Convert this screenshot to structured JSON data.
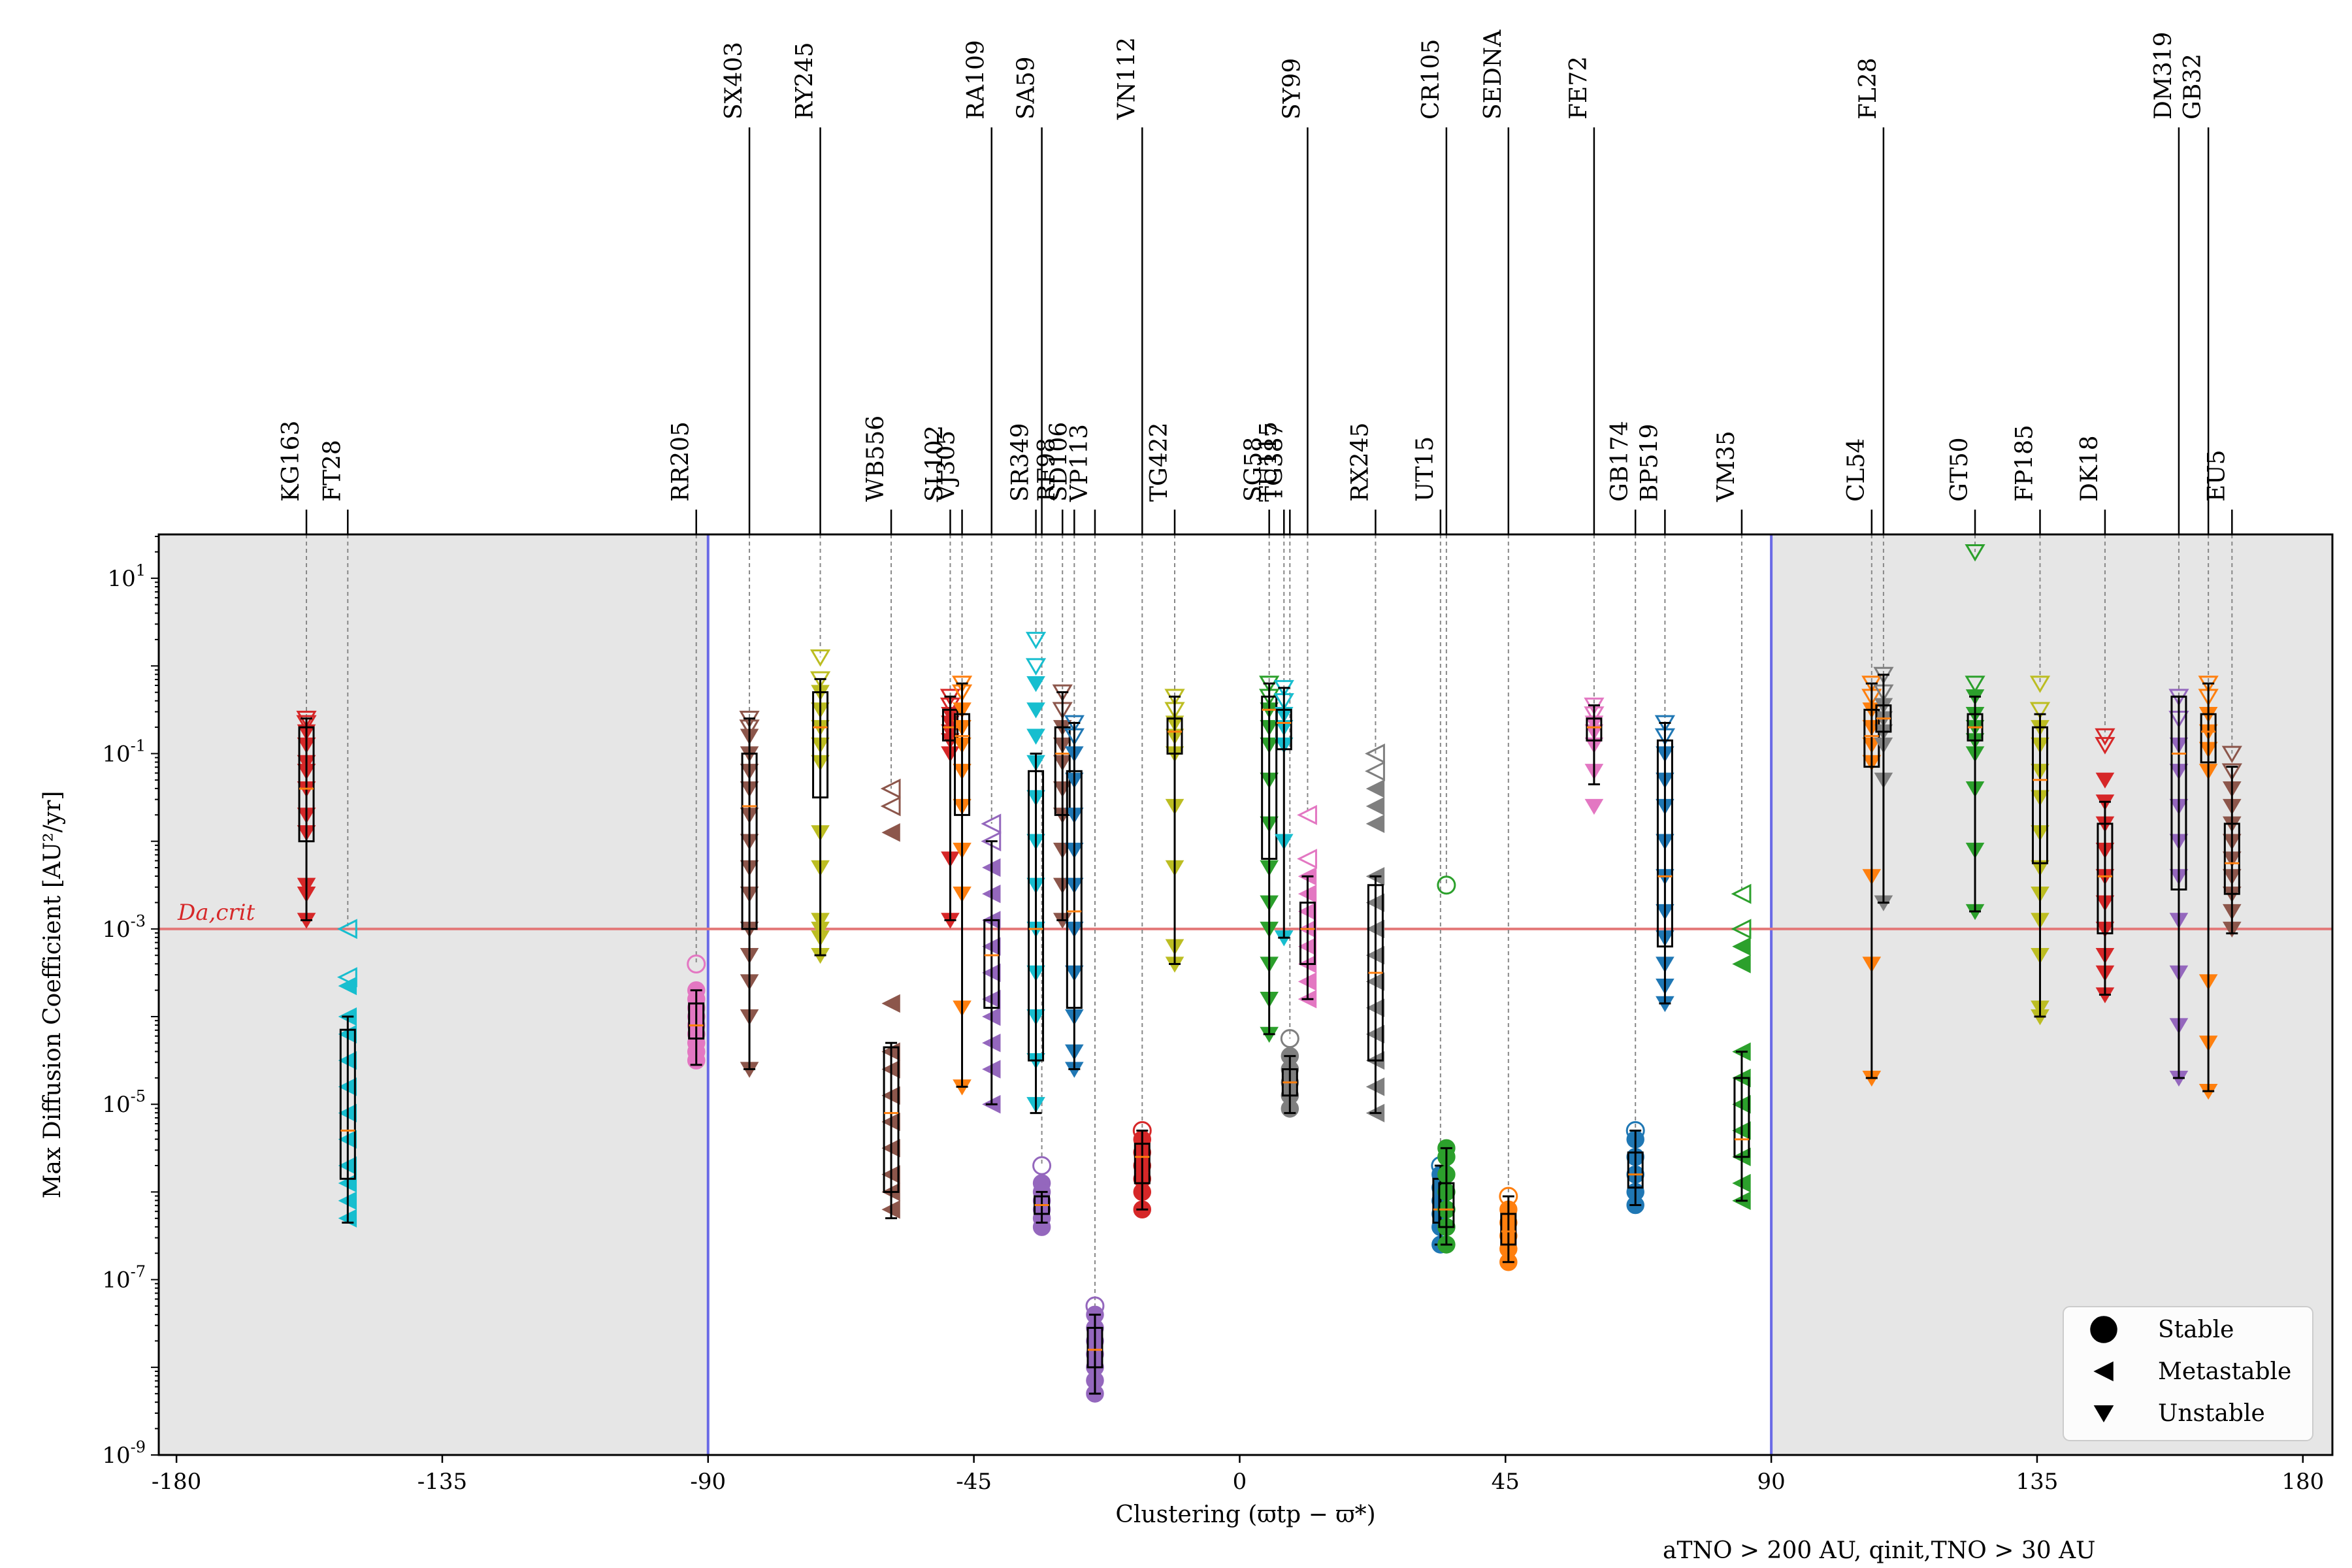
{
  "chart_data": {
    "type": "box-strip",
    "title": "",
    "xlabel": "Clustering (ϖtp − ϖ*)",
    "ylabel": "Max Diffusion Coefficient [AU²/yr]",
    "xlim": [
      -183,
      185
    ],
    "ylim_log10": [
      -9,
      1.5
    ],
    "xticks": [
      -180,
      -135,
      -90,
      -45,
      0,
      45,
      90,
      135,
      180
    ],
    "yticks_log10": [
      1,
      -1,
      -3,
      -5,
      -7,
      -9
    ],
    "ytick_labels": [
      "10^1",
      "10^-1",
      "10^-3",
      "10^-5",
      "10^-7",
      "10^-9"
    ],
    "shaded_regions": [
      [
        -183,
        -90
      ],
      [
        90,
        185
      ]
    ],
    "vertical_lines": [
      -90,
      90
    ],
    "critical_line": {
      "y": 0.001,
      "label": "Da,crit",
      "color": "#e37a7a"
    },
    "footnote": "aTNO > 200 AU, qinit,TNO > 30 AU",
    "legend": {
      "position": "bottom-right",
      "entries": [
        "Stable",
        "Metastable",
        "Unstable"
      ]
    },
    "objects": [
      {
        "name": "KG163",
        "x": -158,
        "label_top": false,
        "color": "#d62728",
        "marker": "unstable",
        "box": [
          -2.0,
          -0.7
        ],
        "whisk": [
          -2.9,
          -0.6
        ],
        "median": -1.4,
        "pts": [
          -0.6,
          -0.65,
          -0.75,
          -0.9,
          -1.1,
          -1.2,
          -1.4,
          -1.7,
          -1.9,
          -2.5,
          -2.6,
          -2.9
        ]
      },
      {
        "name": "FT28",
        "x": -151,
        "label_top": false,
        "color": "#17becf",
        "marker": "meta",
        "box": [
          -5.85,
          -4.15
        ],
        "whisk": [
          -6.35,
          -4.0
        ],
        "median": -5.3,
        "pts": [
          -3.0,
          -3.55,
          -3.65,
          -4.0,
          -4.2,
          -4.5,
          -4.8,
          -5.1,
          -5.4,
          -5.7,
          -5.9,
          -6.1,
          -6.3
        ]
      },
      {
        "name": "RR205",
        "x": -92,
        "label_top": false,
        "color": "#e377c2",
        "marker": "stable",
        "box": [
          -4.25,
          -3.85
        ],
        "whisk": [
          -4.55,
          -3.7
        ],
        "median": -4.1,
        "pts": [
          -3.4,
          -3.7,
          -3.8,
          -3.9,
          -4.0,
          -4.1,
          -4.2,
          -4.3,
          -4.4,
          -4.5
        ]
      },
      {
        "name": "SX403",
        "x": -83,
        "label_top": true,
        "color": "#8c564b",
        "marker": "unstable",
        "box": [
          -3.0,
          -1.0
        ],
        "whisk": [
          -4.6,
          -0.6
        ],
        "median": -1.6,
        "pts": [
          -0.6,
          -0.7,
          -0.8,
          -1.0,
          -1.2,
          -1.4,
          -1.7,
          -2.0,
          -2.3,
          -2.6,
          -3.0,
          -3.3,
          -3.6,
          -4.0,
          -4.6
        ]
      },
      {
        "name": "RY245",
        "x": -71,
        "label_top": true,
        "color": "#bcbd22",
        "marker": "unstable",
        "box": [
          -1.5,
          -0.3
        ],
        "whisk": [
          -3.3,
          -0.15
        ],
        "median": -0.7,
        "pts": [
          0.1,
          -0.15,
          -0.3,
          -0.5,
          -0.7,
          -0.9,
          -1.1,
          -1.9,
          -2.3,
          -2.9,
          -3.0,
          -3.1,
          -3.3
        ]
      },
      {
        "name": "WB556",
        "x": -59,
        "label_top": false,
        "color": "#8c564b",
        "marker": "meta",
        "box": [
          -6.0,
          -4.35
        ],
        "whisk": [
          -6.3,
          -4.3
        ],
        "median": -5.1,
        "pts": [
          -1.4,
          -1.6,
          -1.9,
          -3.85,
          -4.4,
          -4.6,
          -4.9,
          -5.2,
          -5.5,
          -5.8,
          -6.0,
          -6.2
        ]
      },
      {
        "name": "SL102",
        "x": -49,
        "label_top": false,
        "color": "#d62728",
        "marker": "unstable",
        "box": [
          -0.85,
          -0.5
        ],
        "whisk": [
          -2.9,
          -0.35
        ],
        "median": -0.7,
        "pts": [
          -0.35,
          -0.45,
          -0.55,
          -0.65,
          -0.75,
          -0.85,
          -1.0,
          -2.2,
          -2.9
        ]
      },
      {
        "name": "VJ305",
        "x": -47,
        "label_top": false,
        "color": "#ff7f0e",
        "marker": "unstable",
        "box": [
          -1.7,
          -0.55
        ],
        "whisk": [
          -4.8,
          -0.2
        ],
        "median": -0.8,
        "pts": [
          -0.2,
          -0.3,
          -0.5,
          -0.7,
          -0.9,
          -1.2,
          -1.6,
          -2.1,
          -2.6,
          -3.9,
          -4.8
        ]
      },
      {
        "name": "RA109",
        "x": -42,
        "label_top": true,
        "color": "#9467bd",
        "marker": "meta",
        "box": [
          -3.9,
          -2.9
        ],
        "whisk": [
          -5.0,
          -2.0
        ],
        "median": -3.3,
        "pts": [
          -1.8,
          -2.0,
          -2.3,
          -2.6,
          -2.9,
          -3.2,
          -3.5,
          -3.8,
          -4.0,
          -4.3,
          -4.6,
          -5.0
        ]
      },
      {
        "name": "SR349",
        "x": -34.5,
        "label_top": false,
        "color": "#17becf",
        "marker": "unstable",
        "box": [
          -4.5,
          -1.2
        ],
        "whisk": [
          -5.1,
          -1.0
        ],
        "median": -3.0,
        "pts": [
          0.3,
          0.0,
          -0.2,
          -0.5,
          -0.8,
          -1.1,
          -1.5,
          -2.0,
          -2.5,
          -3.0,
          -3.5,
          -4.0,
          -4.5,
          -5.0
        ]
      },
      {
        "name": "SA59",
        "x": -33.5,
        "label_top": true,
        "color": "#9467bd",
        "marker": "stable",
        "box": [
          -6.25,
          -6.05
        ],
        "whisk": [
          -6.35,
          -6.0
        ],
        "median": -6.15,
        "pts": [
          -5.7,
          -5.9,
          -6.0,
          -6.1,
          -6.2,
          -6.3,
          -6.4
        ]
      },
      {
        "name": "RF98",
        "x": -30,
        "label_top": false,
        "color": "#8c564b",
        "marker": "unstable",
        "box": [
          -1.7,
          -0.7
        ],
        "whisk": [
          -2.9,
          -0.3
        ],
        "median": -1.0,
        "pts": [
          -0.3,
          -0.5,
          -0.7,
          -0.9,
          -1.1,
          -1.4,
          -1.7,
          -2.1,
          -2.5,
          -2.9
        ]
      },
      {
        "name": "SD106",
        "x": -28,
        "label_top": false,
        "color": "#1f77b4",
        "marker": "unstable",
        "box": [
          -3.9,
          -1.2
        ],
        "whisk": [
          -4.6,
          -0.65
        ],
        "median": -2.8,
        "pts": [
          -0.65,
          -0.8,
          -1.0,
          -1.3,
          -1.7,
          -2.1,
          -2.5,
          -3.0,
          -3.5,
          -4.0,
          -4.4,
          -4.6
        ]
      },
      {
        "name": "VP113",
        "x": -24.5,
        "label_top": false,
        "color": "#9467bd",
        "marker": "stable",
        "box": [
          -8.0,
          -7.55
        ],
        "whisk": [
          -8.3,
          -7.4
        ],
        "median": -7.8,
        "pts": [
          -7.3,
          -7.4,
          -7.55,
          -7.7,
          -7.85,
          -8.0,
          -8.15,
          -8.3
        ]
      },
      {
        "name": "VN112",
        "x": -16.5,
        "label_top": true,
        "color": "#d62728",
        "marker": "stable",
        "box": [
          -5.9,
          -5.45
        ],
        "whisk": [
          -6.2,
          -5.3
        ],
        "median": -5.6,
        "pts": [
          -5.3,
          -5.4,
          -5.55,
          -5.7,
          -5.85,
          -6.0,
          -6.2
        ]
      },
      {
        "name": "TG422",
        "x": -11,
        "label_top": false,
        "color": "#bcbd22",
        "marker": "unstable",
        "box": [
          -1.0,
          -0.6
        ],
        "whisk": [
          -3.4,
          -0.35
        ],
        "median": -0.75,
        "pts": [
          -0.35,
          -0.5,
          -0.65,
          -0.8,
          -1.0,
          -1.6,
          -2.3,
          -3.2,
          -3.4
        ]
      },
      {
        "name": "SG58",
        "x": 5,
        "label_top": false,
        "color": "#2ca02c",
        "marker": "unstable",
        "box": [
          -2.2,
          -0.35
        ],
        "whisk": [
          -4.2,
          -0.2
        ],
        "median": -0.5,
        "pts": [
          -0.2,
          -0.35,
          -0.5,
          -0.7,
          -0.9,
          -1.3,
          -1.8,
          -2.3,
          -2.7,
          -3.0,
          -3.4,
          -3.8,
          -4.2
        ]
      },
      {
        "name": "TU115",
        "x": 7.5,
        "label_top": false,
        "color": "#17becf",
        "marker": "unstable",
        "box": [
          -0.95,
          -0.5
        ],
        "whisk": [
          -3.1,
          -0.25
        ],
        "median": -0.65,
        "pts": [
          -0.25,
          -0.4,
          -0.55,
          -0.7,
          -0.9,
          -2.0,
          -3.1
        ]
      },
      {
        "name": "TG387",
        "x": 8.5,
        "label_top": false,
        "color": "#7f7f7f",
        "marker": "stable",
        "box": [
          -4.9,
          -4.6
        ],
        "whisk": [
          -5.1,
          -4.45
        ],
        "median": -4.75,
        "pts": [
          -4.25,
          -4.45,
          -4.6,
          -4.75,
          -4.9,
          -5.05
        ]
      },
      {
        "name": "SY99",
        "x": 11.5,
        "label_top": true,
        "color": "#e377c2",
        "marker": "meta",
        "box": [
          -3.4,
          -2.7
        ],
        "whisk": [
          -3.8,
          -2.4
        ],
        "median": -3.0,
        "pts": [
          -1.7,
          -2.2,
          -2.4,
          -2.6,
          -2.8,
          -3.0,
          -3.2,
          -3.4,
          -3.6,
          -3.8
        ]
      },
      {
        "name": "RX245",
        "x": 23,
        "label_top": false,
        "color": "#7f7f7f",
        "marker": "meta",
        "box": [
          -4.5,
          -2.5
        ],
        "whisk": [
          -5.1,
          -2.4
        ],
        "median": -3.5,
        "pts": [
          -1.0,
          -1.2,
          -1.4,
          -1.6,
          -1.8,
          -2.4,
          -2.7,
          -3.0,
          -3.3,
          -3.6,
          -3.9,
          -4.2,
          -4.5,
          -4.8,
          -5.1
        ]
      },
      {
        "name": "UT15",
        "x": 34,
        "label_top": false,
        "color": "#1f77b4",
        "marker": "stable",
        "box": [
          -6.35,
          -5.85
        ],
        "whisk": [
          -6.6,
          -5.7
        ],
        "median": -6.2,
        "pts": [
          -5.7,
          -5.8,
          -5.95,
          -6.1,
          -6.25,
          -6.4,
          -6.6
        ]
      },
      {
        "name": "CR105",
        "x": 35,
        "label_top": true,
        "color": "#2ca02c",
        "marker": "stable",
        "box": [
          -6.4,
          -5.9
        ],
        "whisk": [
          -6.6,
          -5.5
        ],
        "median": -6.2,
        "pts": [
          -2.5,
          -5.5,
          -5.6,
          -5.8,
          -6.0,
          -6.2,
          -6.4,
          -6.6
        ]
      },
      {
        "name": "SEDNA",
        "x": 45.5,
        "label_top": true,
        "color": "#ff7f0e",
        "marker": "stable",
        "box": [
          -6.6,
          -6.25
        ],
        "whisk": [
          -6.8,
          -6.05
        ],
        "median": -6.45,
        "pts": [
          -6.05,
          -6.2,
          -6.35,
          -6.5,
          -6.65,
          -6.8
        ]
      },
      {
        "name": "FE72",
        "x": 60,
        "label_top": true,
        "color": "#e377c2",
        "marker": "unstable",
        "box": [
          -0.85,
          -0.6
        ],
        "whisk": [
          -1.35,
          -0.45
        ],
        "median": -0.7,
        "pts": [
          -0.45,
          -0.55,
          -0.65,
          -0.75,
          -0.9,
          -1.2,
          -1.6
        ]
      },
      {
        "name": "GB174",
        "x": 67,
        "label_top": false,
        "color": "#1f77b4",
        "marker": "stable",
        "box": [
          -5.95,
          -5.55
        ],
        "whisk": [
          -6.15,
          -5.3
        ],
        "median": -5.8,
        "pts": [
          -5.3,
          -5.4,
          -5.6,
          -5.8,
          -6.0,
          -6.15
        ]
      },
      {
        "name": "BP519",
        "x": 72,
        "label_top": false,
        "color": "#1f77b4",
        "marker": "unstable",
        "box": [
          -3.2,
          -0.85
        ],
        "whisk": [
          -3.85,
          -0.65
        ],
        "median": -2.4,
        "pts": [
          -0.65,
          -0.8,
          -1.0,
          -1.3,
          -1.6,
          -2.0,
          -2.4,
          -2.8,
          -3.1,
          -3.4,
          -3.65,
          -3.85
        ]
      },
      {
        "name": "VM35",
        "x": 85,
        "label_top": false,
        "color": "#2ca02c",
        "marker": "meta",
        "box": [
          -5.6,
          -4.7
        ],
        "whisk": [
          -6.1,
          -4.4
        ],
        "median": -5.4,
        "pts": [
          -2.6,
          -3.0,
          -3.2,
          -3.4,
          -4.4,
          -4.7,
          -5.0,
          -5.3,
          -5.6,
          -5.9,
          -6.1
        ]
      },
      {
        "name": "CL54",
        "x": 107,
        "label_top": false,
        "color": "#ff7f0e",
        "marker": "unstable",
        "box": [
          -1.15,
          -0.5
        ],
        "whisk": [
          -4.7,
          -0.2
        ],
        "median": -0.8,
        "pts": [
          -0.2,
          -0.35,
          -0.5,
          -0.7,
          -0.9,
          -1.1,
          -2.4,
          -3.4,
          -4.7
        ]
      },
      {
        "name": "FL28",
        "x": 109,
        "label_top": true,
        "color": "#7f7f7f",
        "marker": "unstable",
        "box": [
          -0.75,
          -0.45
        ],
        "whisk": [
          -2.7,
          -0.1
        ],
        "median": -0.6,
        "pts": [
          -0.1,
          -0.3,
          -0.45,
          -0.6,
          -0.75,
          -0.9,
          -1.3,
          -2.7
        ]
      },
      {
        "name": "GT50",
        "x": 124.5,
        "label_top": false,
        "color": "#2ca02c",
        "marker": "unstable",
        "box": [
          -0.85,
          -0.55
        ],
        "whisk": [
          -2.8,
          -0.35
        ],
        "median": -0.7,
        "pts": [
          1.3,
          -0.2,
          -0.35,
          -0.55,
          -0.7,
          -0.85,
          -1.0,
          -1.4,
          -2.1,
          -2.8
        ]
      },
      {
        "name": "FP185",
        "x": 135.5,
        "label_top": false,
        "color": "#bcbd22",
        "marker": "unstable",
        "box": [
          -2.25,
          -0.7
        ],
        "whisk": [
          -4.0,
          -0.55
        ],
        "median": -1.3,
        "pts": [
          -0.2,
          -0.5,
          -0.7,
          -0.9,
          -1.2,
          -1.5,
          -1.9,
          -2.3,
          -2.6,
          -2.9,
          -3.3,
          -3.9,
          -4.0
        ]
      },
      {
        "name": "DK18",
        "x": 146.5,
        "label_top": false,
        "color": "#d62728",
        "marker": "unstable",
        "box": [
          -3.05,
          -1.8
        ],
        "whisk": [
          -3.75,
          -1.55
        ],
        "median": -2.4,
        "pts": [
          -0.8,
          -0.9,
          -1.3,
          -1.55,
          -1.8,
          -2.1,
          -2.4,
          -2.7,
          -3.0,
          -3.3,
          -3.5,
          -3.75
        ]
      },
      {
        "name": "DM319",
        "x": 159,
        "label_top": true,
        "color": "#9467bd",
        "marker": "unstable",
        "box": [
          -2.55,
          -0.35
        ],
        "whisk": [
          -4.7,
          -0.35
        ],
        "median": -1.0,
        "pts": [
          -0.35,
          -0.6,
          -0.9,
          -1.2,
          -1.6,
          -2.0,
          -2.4,
          -2.9,
          -3.5,
          -4.1,
          -4.7
        ]
      },
      {
        "name": "GB32",
        "x": 164,
        "label_top": true,
        "color": "#ff7f0e",
        "marker": "unstable",
        "box": [
          -1.1,
          -0.55
        ],
        "whisk": [
          -4.85,
          -0.2
        ],
        "median": -0.75,
        "pts": [
          -0.2,
          -0.35,
          -0.55,
          -0.75,
          -0.95,
          -1.2,
          -3.6,
          -4.3,
          -4.85
        ]
      },
      {
        "name": "EU5",
        "x": 168,
        "label_top": false,
        "color": "#8c564b",
        "marker": "unstable",
        "box": [
          -2.6,
          -1.8
        ],
        "whisk": [
          -3.05,
          -1.15
        ],
        "median": -2.25,
        "pts": [
          -1.0,
          -1.2,
          -1.4,
          -1.6,
          -1.8,
          -2.0,
          -2.2,
          -2.4,
          -2.6,
          -2.8,
          -3.0
        ]
      }
    ]
  }
}
